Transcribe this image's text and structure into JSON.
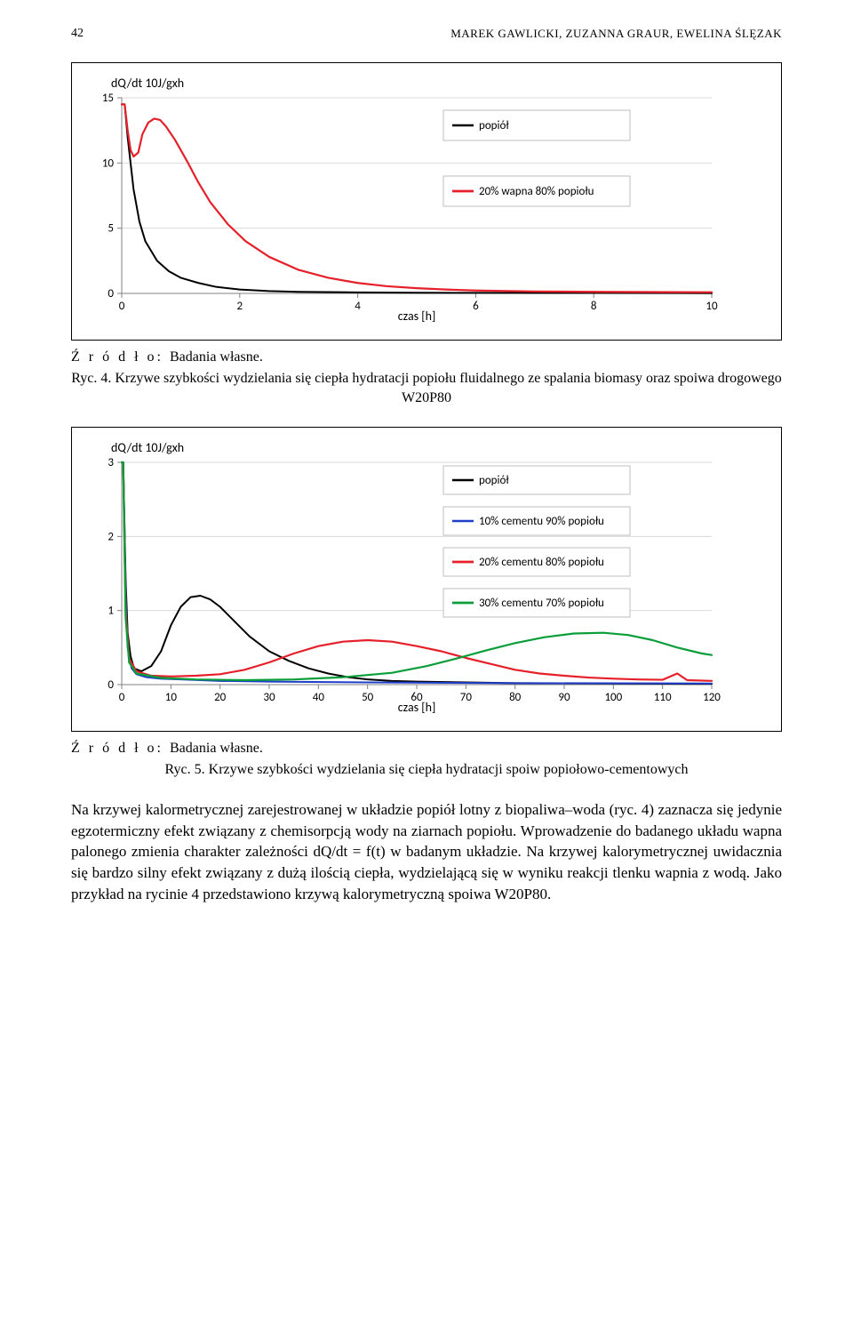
{
  "header": {
    "page_number": "42",
    "authors": "MAREK GAWLICKI, ZUZANNA GRAUR, EWELINA ŚLĘZAK"
  },
  "chart1": {
    "type": "line",
    "y_label": "dQ/dt 10J/gxh",
    "x_label": "czas [h]",
    "x_ticks": [
      0,
      2,
      4,
      6,
      8,
      10
    ],
    "y_ticks": [
      0,
      5,
      10,
      15
    ],
    "xlim": [
      0,
      10
    ],
    "ylim": [
      0,
      15
    ],
    "grid_color": "#d9d9d9",
    "background_color": "#ffffff",
    "axis_color": "#808080",
    "series": [
      {
        "label": "popiół",
        "color": "#000000",
        "width": 2,
        "points": [
          [
            0,
            14.5
          ],
          [
            0.05,
            14.5
          ],
          [
            0.1,
            12
          ],
          [
            0.2,
            8
          ],
          [
            0.3,
            5.5
          ],
          [
            0.4,
            4
          ],
          [
            0.6,
            2.5
          ],
          [
            0.8,
            1.7
          ],
          [
            1.0,
            1.2
          ],
          [
            1.3,
            0.8
          ],
          [
            1.6,
            0.5
          ],
          [
            2.0,
            0.3
          ],
          [
            2.5,
            0.18
          ],
          [
            3.0,
            0.12
          ],
          [
            4.0,
            0.08
          ],
          [
            5.0,
            0.05
          ],
          [
            6.0,
            0.04
          ],
          [
            8.0,
            0.03
          ],
          [
            10.0,
            0.02
          ]
        ]
      },
      {
        "label": "20% wapna 80% popiołu",
        "color": "#e6202a",
        "width": 2.2,
        "points": [
          [
            0,
            14.5
          ],
          [
            0.05,
            14.5
          ],
          [
            0.1,
            12.5
          ],
          [
            0.15,
            11
          ],
          [
            0.2,
            10.5
          ],
          [
            0.28,
            10.8
          ],
          [
            0.35,
            12.2
          ],
          [
            0.45,
            13.1
          ],
          [
            0.55,
            13.4
          ],
          [
            0.65,
            13.3
          ],
          [
            0.75,
            12.8
          ],
          [
            0.9,
            11.8
          ],
          [
            1.1,
            10.2
          ],
          [
            1.3,
            8.5
          ],
          [
            1.5,
            7.0
          ],
          [
            1.8,
            5.3
          ],
          [
            2.1,
            4.0
          ],
          [
            2.5,
            2.8
          ],
          [
            3.0,
            1.8
          ],
          [
            3.5,
            1.2
          ],
          [
            4.0,
            0.8
          ],
          [
            4.5,
            0.55
          ],
          [
            5.0,
            0.4
          ],
          [
            5.5,
            0.3
          ],
          [
            6.0,
            0.22
          ],
          [
            7.0,
            0.15
          ],
          [
            8.0,
            0.12
          ],
          [
            9.0,
            0.1
          ],
          [
            10.0,
            0.09
          ]
        ]
      }
    ]
  },
  "source1": "Ź r ó d ł o: Badania własne.",
  "caption1_prefix": "Ryc. 4.",
  "caption1_text": "Krzywe szybkości wydzielania się ciepła hydratacji popiołu fluidalnego ze spalania biomasy oraz spoiwa drogowego W20P80",
  "chart2": {
    "type": "line",
    "y_label": "dQ/dt 10J/gxh",
    "x_label": "czas [h]",
    "x_ticks": [
      0,
      10,
      20,
      30,
      40,
      50,
      60,
      70,
      80,
      90,
      100,
      110,
      120
    ],
    "y_ticks": [
      0,
      1,
      2,
      3
    ],
    "xlim": [
      0,
      120
    ],
    "ylim": [
      0,
      3
    ],
    "grid_color": "#d9d9d9",
    "background_color": "#ffffff",
    "axis_color": "#808080",
    "series": [
      {
        "label": "popiół",
        "color": "#000000",
        "width": 2,
        "points": [
          [
            0,
            3
          ],
          [
            0.3,
            3
          ],
          [
            0.8,
            1.4
          ],
          [
            1.2,
            0.7
          ],
          [
            1.8,
            0.38
          ],
          [
            2.5,
            0.22
          ],
          [
            4,
            0.18
          ],
          [
            6,
            0.25
          ],
          [
            8,
            0.45
          ],
          [
            10,
            0.8
          ],
          [
            12,
            1.05
          ],
          [
            14,
            1.18
          ],
          [
            16,
            1.2
          ],
          [
            18,
            1.15
          ],
          [
            20,
            1.05
          ],
          [
            23,
            0.85
          ],
          [
            26,
            0.65
          ],
          [
            30,
            0.45
          ],
          [
            34,
            0.32
          ],
          [
            38,
            0.22
          ],
          [
            42,
            0.15
          ],
          [
            46,
            0.1
          ],
          [
            50,
            0.07
          ],
          [
            55,
            0.05
          ],
          [
            60,
            0.04
          ],
          [
            70,
            0.03
          ],
          [
            80,
            0.02
          ],
          [
            100,
            0.015
          ],
          [
            120,
            0.01
          ]
        ]
      },
      {
        "label": "10% cementu 90% popiołu",
        "color": "#1f3ec9",
        "width": 2,
        "points": [
          [
            0,
            3
          ],
          [
            0.3,
            3
          ],
          [
            0.8,
            1.2
          ],
          [
            1.2,
            0.5
          ],
          [
            2,
            0.22
          ],
          [
            3,
            0.14
          ],
          [
            5,
            0.1
          ],
          [
            8,
            0.08
          ],
          [
            12,
            0.07
          ],
          [
            20,
            0.05
          ],
          [
            30,
            0.04
          ],
          [
            50,
            0.03
          ],
          [
            80,
            0.02
          ],
          [
            120,
            0.015
          ]
        ]
      },
      {
        "label": "20% cementu 80% popiołu",
        "color": "#e6202a",
        "width": 2.2,
        "points": [
          [
            0,
            3
          ],
          [
            0.3,
            3
          ],
          [
            0.8,
            1.0
          ],
          [
            1.5,
            0.35
          ],
          [
            3,
            0.18
          ],
          [
            6,
            0.12
          ],
          [
            10,
            0.11
          ],
          [
            15,
            0.12
          ],
          [
            20,
            0.14
          ],
          [
            25,
            0.2
          ],
          [
            30,
            0.3
          ],
          [
            35,
            0.42
          ],
          [
            40,
            0.52
          ],
          [
            45,
            0.58
          ],
          [
            50,
            0.6
          ],
          [
            55,
            0.58
          ],
          [
            60,
            0.52
          ],
          [
            65,
            0.45
          ],
          [
            70,
            0.36
          ],
          [
            75,
            0.28
          ],
          [
            80,
            0.2
          ],
          [
            85,
            0.15
          ],
          [
            90,
            0.12
          ],
          [
            95,
            0.095
          ],
          [
            100,
            0.08
          ],
          [
            105,
            0.07
          ],
          [
            110,
            0.065
          ],
          [
            113,
            0.15
          ],
          [
            115,
            0.06
          ],
          [
            120,
            0.05
          ]
        ]
      },
      {
        "label": "30% cementu 70% popiołu",
        "color": "#0a9e3a",
        "width": 2.2,
        "points": [
          [
            0,
            3
          ],
          [
            0.3,
            3
          ],
          [
            0.8,
            0.9
          ],
          [
            1.5,
            0.3
          ],
          [
            3,
            0.15
          ],
          [
            8,
            0.09
          ],
          [
            15,
            0.07
          ],
          [
            25,
            0.06
          ],
          [
            35,
            0.07
          ],
          [
            45,
            0.1
          ],
          [
            55,
            0.16
          ],
          [
            62,
            0.25
          ],
          [
            68,
            0.35
          ],
          [
            74,
            0.46
          ],
          [
            80,
            0.56
          ],
          [
            86,
            0.64
          ],
          [
            92,
            0.69
          ],
          [
            98,
            0.7
          ],
          [
            103,
            0.67
          ],
          [
            108,
            0.6
          ],
          [
            113,
            0.5
          ],
          [
            118,
            0.42
          ],
          [
            120,
            0.4
          ]
        ]
      }
    ]
  },
  "source2": "Ź r ó d ł o: Badania własne.",
  "caption2_prefix": "Ryc. 5.",
  "caption2_text": "Krzywe szybkości wydzielania się ciepła hydratacji spoiw popiołowo-cementowych",
  "body": "Na krzywej kalormetrycznej zarejestrowanej w układzie popiół lotny z biopaliwa–woda (ryc. 4) zaznacza się jedynie egzotermiczny efekt związany z chemisorpcją wody na ziarnach popiołu. Wprowadzenie do badanego układu wapna palonego zmienia charakter zależności dQ/dt = f(t) w badanym układzie. Na krzywej kalorymetrycznej uwidacznia się bardzo silny efekt związany z dużą ilością ciepła, wydzielającą się w wyniku reakcji tlenku wapnia z wodą. Jako przykład na rycinie 4 przedstawiono krzywą kalorymetryczną spoiwa W20P80."
}
